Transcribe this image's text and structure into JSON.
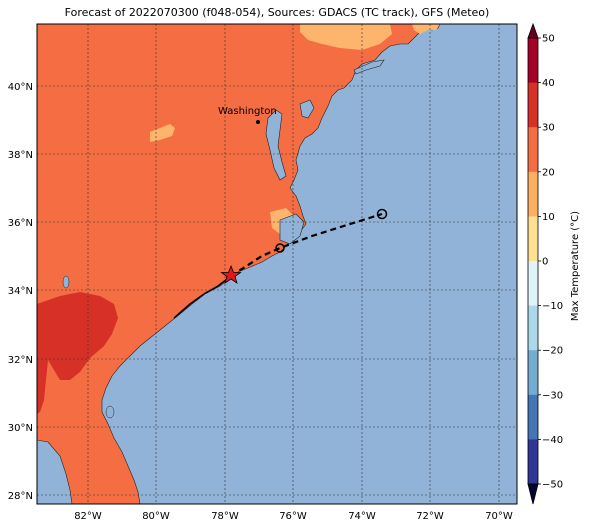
{
  "title": "Forecast of 2022070300 (f048-054), Sources: GDACS (TC track), GFS (Meteo)",
  "map": {
    "lat_ticks": [
      "40°N",
      "38°N",
      "36°N",
      "34°N",
      "32°N",
      "30°N",
      "28°N"
    ],
    "lon_ticks": [
      "82°W",
      "80°W",
      "78°W",
      "76°W",
      "74°W",
      "72°W",
      "70°W"
    ],
    "city_label": "Washington",
    "colors": {
      "ocean": "#91b3d8",
      "land_20_30": "#f46d43",
      "land_10_20": "#fdb56e",
      "land_30_40": "#d73027"
    }
  },
  "colorbar": {
    "label": "Max Temperature (°C)",
    "ticks": [
      "50",
      "40",
      "30",
      "20",
      "10",
      "0",
      "−10",
      "−20",
      "−30",
      "−40",
      "−50"
    ],
    "colors": [
      "#a50026",
      "#d73027",
      "#f46d43",
      "#fdae61",
      "#fee090",
      "#ffffbf",
      "#e0f3f8",
      "#abd9e9",
      "#74add1",
      "#4575b4",
      "#313695"
    ]
  },
  "track": {
    "observed": "solid line",
    "forecast": "dashed line",
    "markers": [
      "star",
      "circle",
      "circle"
    ]
  }
}
